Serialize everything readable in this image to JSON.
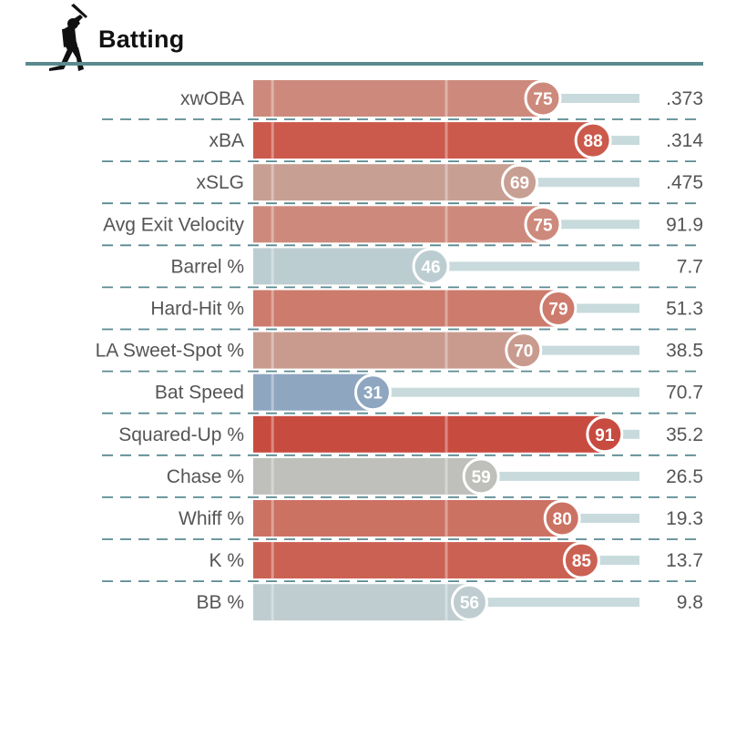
{
  "title": "Batting",
  "icon": "batter-silhouette-icon",
  "colors": {
    "rule": "#5a8a90",
    "dash": "#5a8a90",
    "track": "#c8dadc",
    "label": "#555555",
    "red_high": "#c8403a",
    "blue_low": "#8ba6c0",
    "neutral": "#bebebe"
  },
  "chart_data": {
    "type": "bar",
    "orientation": "horizontal",
    "xlim": [
      0,
      100
    ],
    "percentile_scale": true,
    "metrics": [
      {
        "label": "xwOBA",
        "percentile": 75,
        "value": ".373",
        "color": "#cd8a7c"
      },
      {
        "label": "xBA",
        "percentile": 88,
        "value": ".314",
        "color": "#cb5a4c"
      },
      {
        "label": "xSLG",
        "percentile": 69,
        "value": ".475",
        "color": "#c89f93"
      },
      {
        "label": "Avg Exit Velocity",
        "percentile": 75,
        "value": "91.9",
        "color": "#cd8a7c"
      },
      {
        "label": "Barrel %",
        "percentile": 46,
        "value": "7.7",
        "color": "#bccdd1"
      },
      {
        "label": "Hard-Hit %",
        "percentile": 79,
        "value": "51.3",
        "color": "#cd7b6d"
      },
      {
        "label": "LA Sweet-Spot %",
        "percentile": 70,
        "value": "38.5",
        "color": "#c99b8f"
      },
      {
        "label": "Bat Speed",
        "percentile": 31,
        "value": "70.7",
        "color": "#8ea6c0"
      },
      {
        "label": "Squared-Up %",
        "percentile": 91,
        "value": "35.2",
        "color": "#c84b40"
      },
      {
        "label": "Chase %",
        "percentile": 59,
        "value": "26.5",
        "color": "#bfbfbb"
      },
      {
        "label": "Whiff %",
        "percentile": 80,
        "value": "19.3",
        "color": "#cc7263"
      },
      {
        "label": "K %",
        "percentile": 85,
        "value": "13.7",
        "color": "#cb6152"
      },
      {
        "label": "BB %",
        "percentile": 56,
        "value": "9.8",
        "color": "#bfcdd0"
      }
    ]
  }
}
